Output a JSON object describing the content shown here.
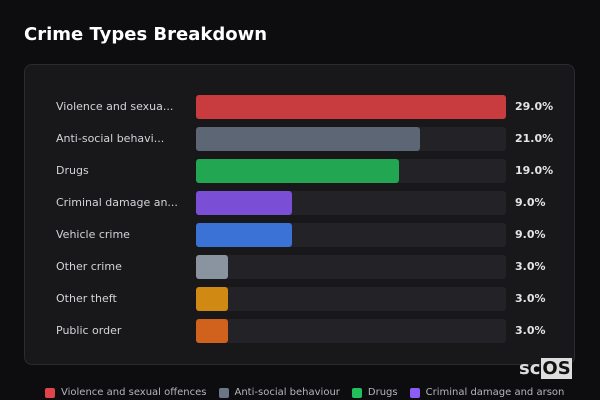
{
  "title": "Crime Types Breakdown",
  "logo": {
    "a": "sc",
    "b": "OS"
  },
  "chart_data": {
    "type": "bar",
    "orientation": "horizontal",
    "categories": [
      "Violence and sexua...",
      "Anti-social behavi...",
      "Drugs",
      "Criminal damage an...",
      "Vehicle crime",
      "Other crime",
      "Other theft",
      "Public order"
    ],
    "values": [
      29.0,
      21.0,
      19.0,
      9.0,
      9.0,
      3.0,
      3.0,
      3.0
    ],
    "value_labels": [
      "29.0%",
      "21.0%",
      "19.0%",
      "9.0%",
      "9.0%",
      "3.0%",
      "3.0%",
      "3.0%"
    ],
    "colors": [
      "#c83c3f",
      "#5c6675",
      "#22a652",
      "#7a4fd6",
      "#3a72d6",
      "#8a93a0",
      "#d08a14",
      "#d0621e"
    ],
    "xlim": [
      0,
      29
    ],
    "legend": {
      "placement": "bottom",
      "entries": [
        {
          "label": "Violence and sexual offences",
          "color": "#e04448"
        },
        {
          "label": "Anti-social behaviour",
          "color": "#6b7689"
        },
        {
          "label": "Drugs",
          "color": "#22c05c"
        },
        {
          "label": "Criminal damage and arson",
          "color": "#8b5cf6"
        }
      ]
    }
  }
}
